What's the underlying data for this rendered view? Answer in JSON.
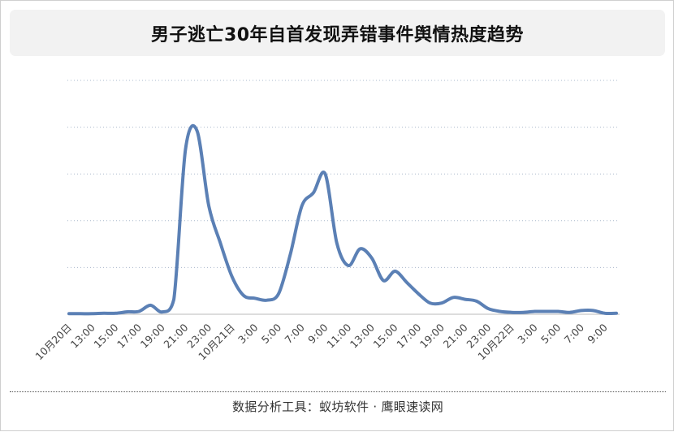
{
  "title": "男子逃亡30年自首发现弄错事件舆情热度趋势",
  "source": "数据分析工具：蚁坊软件 · 鹰眼速读网",
  "colors": {
    "line": "#5b80b5",
    "grid": "#a9b8cc",
    "axis": "#bbbbbb",
    "title_bg": "#f2f2f2"
  },
  "chart_data": {
    "type": "line",
    "title": "男子逃亡30年自首发现弄错事件舆情热度趋势",
    "xlabel": "",
    "ylabel": "",
    "y_tick_labels_shown": false,
    "grid": "horizontal dotted",
    "legend": "none",
    "ylim": [
      0,
      100
    ],
    "x_tick_labels": [
      "10月20日",
      "13:00",
      "15:00",
      "17:00",
      "19:00",
      "21:00",
      "23:00",
      "10月21日",
      "3:00",
      "5:00",
      "7:00",
      "9:00",
      "11:00",
      "13:00",
      "15:00",
      "17:00",
      "19:00",
      "21:00",
      "23:00",
      "10月22日",
      "3:00",
      "5:00",
      "7:00",
      "9:00"
    ],
    "series": [
      {
        "x": [
          "10月20日 11:00",
          "12:00",
          "13:00",
          "14:00",
          "15:00",
          "16:00",
          "17:00",
          "18:00",
          "19:00",
          "20:00",
          "21:00",
          "22:00",
          "23:00",
          "10月21日 0:00",
          "1:00",
          "2:00",
          "3:00",
          "4:00",
          "5:00",
          "6:00",
          "7:00",
          "8:00",
          "9:00",
          "10:00",
          "11:00",
          "12:00",
          "13:00",
          "14:00",
          "15:00",
          "16:00",
          "17:00",
          "18:00",
          "19:00",
          "20:00",
          "21:00",
          "22:00",
          "23:00",
          "10月22日 0:00",
          "1:00",
          "2:00",
          "3:00",
          "4:00",
          "5:00",
          "6:00",
          "7:00",
          "8:00",
          "9:00",
          "10:00"
        ],
        "values": [
          0.3,
          0.3,
          0.3,
          0.5,
          0.5,
          1.3,
          1.5,
          4.8,
          1.2,
          8,
          88,
          98,
          58,
          38,
          20,
          10,
          8.5,
          7.5,
          11,
          32,
          58,
          65,
          75,
          38,
          26,
          35,
          30,
          18,
          23,
          17,
          11,
          6,
          6,
          9,
          8,
          7,
          3,
          1.5,
          1,
          1,
          1.5,
          1.5,
          1.5,
          1,
          2,
          2,
          0.5,
          0.5
        ]
      }
    ]
  }
}
